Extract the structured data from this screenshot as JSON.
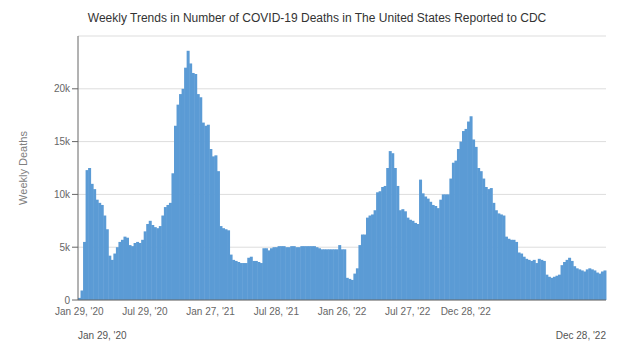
{
  "chart_data": {
    "type": "bar",
    "title": "Weekly Trends in Number of COVID-19 Deaths in The United States Reported to CDC",
    "ylabel": "Weekly Deaths",
    "color": "#5b9bd5",
    "grid": true,
    "ylim": [
      0,
      25000
    ],
    "yticks": [
      0,
      {
        "value": 5000,
        "label": "5k"
      },
      {
        "value": 10000,
        "label": "10k"
      },
      {
        "value": 15000,
        "label": "15k"
      },
      {
        "value": 20000,
        "label": "20k"
      }
    ],
    "annotations": [
      "Jan 29, '20",
      "Dec 28, '22"
    ],
    "categories": [
      "Jan 29, '20",
      null,
      null,
      null,
      null,
      null,
      null,
      null,
      null,
      null,
      null,
      null,
      null,
      null,
      null,
      null,
      null,
      null,
      null,
      null,
      null,
      null,
      null,
      null,
      null,
      null,
      "Jul 29, '20",
      null,
      null,
      null,
      null,
      null,
      null,
      null,
      null,
      null,
      null,
      null,
      null,
      null,
      null,
      null,
      null,
      null,
      null,
      null,
      null,
      null,
      null,
      null,
      null,
      null,
      "Jan 27, '21",
      null,
      null,
      null,
      null,
      null,
      null,
      null,
      null,
      null,
      null,
      null,
      null,
      null,
      null,
      null,
      null,
      null,
      null,
      null,
      null,
      null,
      null,
      null,
      null,
      null,
      "Jul 28, '21",
      null,
      null,
      null,
      null,
      null,
      null,
      null,
      null,
      null,
      null,
      null,
      null,
      null,
      null,
      null,
      null,
      null,
      null,
      null,
      null,
      null,
      null,
      null,
      null,
      null,
      "Jan 26, '22",
      null,
      null,
      null,
      null,
      null,
      null,
      null,
      null,
      null,
      null,
      null,
      null,
      null,
      null,
      null,
      null,
      null,
      null,
      null,
      null,
      null,
      null,
      null,
      null,
      null,
      "Jul 27, '22",
      null,
      null,
      null,
      null,
      null,
      null,
      null,
      null,
      null,
      null,
      null,
      null,
      null,
      null,
      null,
      null,
      null,
      null,
      null,
      null,
      null,
      null,
      "Dec 28, '22",
      null,
      null,
      null,
      null,
      null,
      null,
      null,
      null,
      null,
      null,
      null,
      null,
      null,
      null,
      null,
      null,
      null,
      null,
      null,
      null,
      null,
      null,
      null,
      null,
      null,
      null,
      null,
      null,
      null,
      null,
      null,
      null,
      null,
      null,
      null,
      null,
      null,
      null,
      null,
      null,
      null,
      null,
      null,
      null,
      null,
      null,
      null,
      null,
      null,
      null,
      null,
      null,
      null,
      null,
      null
    ],
    "values": [
      200,
      900,
      5500,
      12300,
      12500,
      11000,
      10500,
      9500,
      9200,
      9000,
      8000,
      6700,
      4200,
      3800,
      4400,
      5000,
      5500,
      5700,
      6000,
      5900,
      5200,
      5100,
      5400,
      5500,
      5400,
      5700,
      6500,
      7200,
      7500,
      7100,
      6900,
      6800,
      7000,
      8000,
      8800,
      9000,
      9200,
      12000,
      16500,
      18500,
      19500,
      20000,
      22000,
      23600,
      22400,
      21500,
      21400,
      19500,
      19200,
      16800,
      16500,
      16600,
      14300,
      13600,
      13700,
      12200,
      7000,
      6800,
      6700,
      6600,
      4300,
      3800,
      3700,
      3600,
      3500,
      3500,
      3500,
      4000,
      4100,
      3700,
      3700,
      3600,
      3500,
      4900,
      4900,
      4700,
      4900,
      5000,
      5000,
      5100,
      5100,
      5100,
      5000,
      5000,
      5100,
      5100,
      5000,
      5000,
      5100,
      5100,
      5100,
      5100,
      5100,
      5100,
      5000,
      4900,
      4800,
      4800,
      4800,
      4800,
      4800,
      4800,
      4800,
      5200,
      4800,
      4800,
      2100,
      2000,
      1900,
      2500,
      3000,
      5200,
      6200,
      6200,
      7800,
      8000,
      8100,
      8500,
      10200,
      10300,
      10700,
      10800,
      12500,
      14100,
      13900,
      12500,
      10800,
      8500,
      8600,
      8400,
      7800,
      7600,
      7500,
      7300,
      7200,
      11400,
      10100,
      9800,
      9600,
      9300,
      9000,
      8900,
      8700,
      9500,
      10000,
      10000,
      10000,
      11500,
      13000,
      13200,
      14300,
      15000,
      16000,
      16200,
      16900,
      17400,
      15200,
      14500,
      12500,
      12200,
      11500,
      10700,
      10500,
      10600,
      9200,
      8500,
      8200,
      8100,
      8000,
      6000,
      5800,
      5700,
      5700,
      5500,
      4500,
      4400,
      4100,
      3900,
      3800,
      3700,
      3800,
      3500,
      3900,
      3800,
      3700,
      2400,
      2200,
      2100,
      2200,
      2300,
      2400,
      3300,
      3600,
      3800,
      4000,
      3700,
      3200,
      3000,
      2900,
      2800,
      2700,
      2900,
      3000,
      2900,
      2800,
      2600,
      2500,
      2700,
      2800
    ]
  }
}
